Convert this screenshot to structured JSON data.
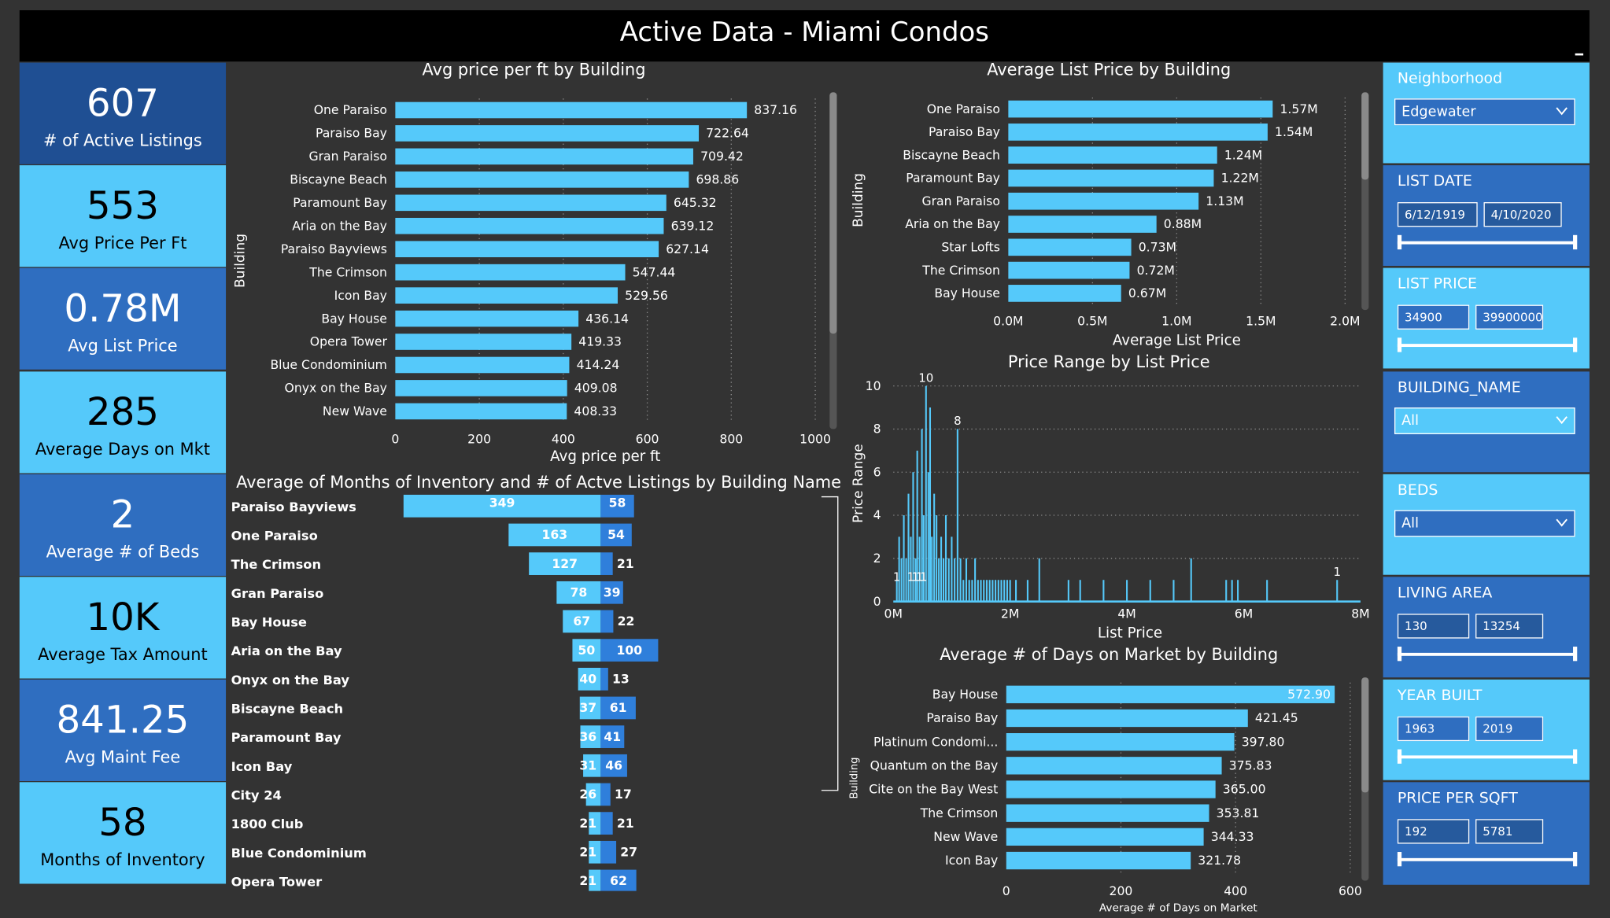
{
  "title": "Active Data - Miami Condos",
  "colors": {
    "bar": "#55c9fa",
    "bar_dark": "#2f7fdb",
    "card_light": "#55c9fa",
    "card_mid": "#2f6ec0",
    "card_dark": "#1f4f93",
    "bg": "#333333"
  },
  "kpis": [
    {
      "value": "607",
      "label": "# of Active Listings"
    },
    {
      "value": "553",
      "label": "Avg Price Per Ft"
    },
    {
      "value": "0.78M",
      "label": "Avg List Price"
    },
    {
      "value": "285",
      "label": "Average Days on Mkt"
    },
    {
      "value": "2",
      "label": "Average # of Beds"
    },
    {
      "value": "10K",
      "label": "Average Tax Amount"
    },
    {
      "value": "841.25",
      "label": "Avg Maint Fee"
    },
    {
      "value": "58",
      "label": "Months of Inventory"
    }
  ],
  "slicers": {
    "neighborhood": {
      "label": "Neighborhood",
      "value": "Edgewater"
    },
    "list_date": {
      "label": "LIST DATE",
      "from": "6/12/1919",
      "to": "4/10/2020"
    },
    "list_price": {
      "label": "LIST PRICE",
      "from": "34900",
      "to": "39900000"
    },
    "building_name": {
      "label": "BUILDING_NAME",
      "value": "All"
    },
    "beds": {
      "label": "BEDS",
      "value": "All"
    },
    "living_area": {
      "label": "LIVING AREA",
      "from": "130",
      "to": "13254"
    },
    "year_built": {
      "label": "YEAR BUILT",
      "from": "1963",
      "to": "2019"
    },
    "price_per_sqft": {
      "label": "PRICE PER SQFT",
      "from": "192",
      "to": "5781"
    }
  },
  "chart_data": [
    {
      "type": "bar",
      "title": "Avg price per ft by Building",
      "xlabel": "Avg price per ft",
      "ylabel": "Building",
      "orientation": "horizontal",
      "categories": [
        "One Paraiso",
        "Paraiso Bay",
        "Gran Paraiso",
        "Biscayne Beach",
        "Paramount Bay",
        "Aria on the Bay",
        "Paraiso Bayviews",
        "The Crimson",
        "Icon Bay",
        "Bay House",
        "Opera Tower",
        "Blue Condominium",
        "Onyx on the Bay",
        "New Wave"
      ],
      "values": [
        837.16,
        722.64,
        709.42,
        698.86,
        645.32,
        639.12,
        627.14,
        547.44,
        529.56,
        436.14,
        419.33,
        414.24,
        409.08,
        408.33
      ],
      "labels": [
        "837.16",
        "722.64",
        "709.42",
        "698.86",
        "645.32",
        "639.12",
        "627.14",
        "547.44",
        "529.56",
        "436.14",
        "419.33",
        "414.24",
        "409.08",
        "408.33"
      ],
      "xticks": [
        "0",
        "200",
        "400",
        "600",
        "800",
        "1000"
      ],
      "xlim": [
        0,
        1000
      ],
      "grid": true
    },
    {
      "type": "bar",
      "title": "Average List Price by Building",
      "xlabel": "Average List Price",
      "ylabel": "Building",
      "orientation": "horizontal",
      "categories": [
        "One Paraiso",
        "Paraiso Bay",
        "Biscayne Beach",
        "Paramount Bay",
        "Gran Paraiso",
        "Aria on the Bay",
        "Star Lofts",
        "The Crimson",
        "Bay House"
      ],
      "values": [
        1570000,
        1540000,
        1240000,
        1220000,
        1130000,
        880000,
        730000,
        720000,
        670000
      ],
      "labels": [
        "1.57M",
        "1.54M",
        "1.24M",
        "1.22M",
        "1.13M",
        "0.88M",
        "0.73M",
        "0.72M",
        "0.67M"
      ],
      "xticks": [
        "0.0M",
        "0.5M",
        "1.0M",
        "1.5M",
        "2.0M"
      ],
      "xlim": [
        0,
        2000000
      ],
      "grid": true
    },
    {
      "type": "bar",
      "title": "Average of Months of Inventory and # of Actve Listings by Building Name",
      "orientation": "horizontal-diverging",
      "categories": [
        "Paraiso Bayviews",
        "One Paraiso",
        "The Crimson",
        "Gran Paraiso",
        "Bay House",
        "Aria on the Bay",
        "Onyx on the Bay",
        "Biscayne Beach",
        "Paramount Bay",
        "Icon Bay",
        "City 24",
        "1800 Club",
        "Blue Condominium",
        "Opera Tower"
      ],
      "series": [
        {
          "values": [
            349,
            163,
            127,
            78,
            67,
            50,
            40,
            37,
            36,
            31,
            26,
            21,
            21,
            21
          ]
        },
        {
          "values": [
            58,
            54,
            21,
            39,
            22,
            100,
            13,
            61,
            41,
            46,
            17,
            21,
            27,
            62
          ]
        }
      ]
    },
    {
      "type": "line",
      "title": "Price Range by List Price",
      "xlabel": "List Price",
      "ylabel": "Price Range",
      "xticks": [
        "0M",
        "2M",
        "4M",
        "6M",
        "8M"
      ],
      "yticks": [
        "0",
        "2",
        "4",
        "6",
        "8",
        "10"
      ],
      "xlim": [
        0,
        8000000
      ],
      "ylim": [
        0,
        10
      ],
      "annotations": [
        "10",
        "8",
        "1",
        "1",
        "1",
        "1",
        "1",
        "1"
      ],
      "spikes": [
        [
          60000,
          1
        ],
        [
          100000,
          3
        ],
        [
          140000,
          2
        ],
        [
          180000,
          4
        ],
        [
          220000,
          2
        ],
        [
          260000,
          5
        ],
        [
          300000,
          3
        ],
        [
          340000,
          6
        ],
        [
          380000,
          2
        ],
        [
          410000,
          7
        ],
        [
          450000,
          3
        ],
        [
          490000,
          8
        ],
        [
          520000,
          4
        ],
        [
          560000,
          10
        ],
        [
          600000,
          6
        ],
        [
          630000,
          9
        ],
        [
          660000,
          3
        ],
        [
          700000,
          5
        ],
        [
          740000,
          4
        ],
        [
          780000,
          2
        ],
        [
          820000,
          3
        ],
        [
          860000,
          2
        ],
        [
          900000,
          4
        ],
        [
          950000,
          2
        ],
        [
          1000000,
          3
        ],
        [
          1050000,
          2
        ],
        [
          1100000,
          8
        ],
        [
          1150000,
          2
        ],
        [
          1200000,
          1
        ],
        [
          1250000,
          2
        ],
        [
          1300000,
          1
        ],
        [
          1350000,
          1
        ],
        [
          1400000,
          2
        ],
        [
          1450000,
          1
        ],
        [
          1500000,
          1
        ],
        [
          1550000,
          1
        ],
        [
          1600000,
          1
        ],
        [
          1650000,
          1
        ],
        [
          1700000,
          1
        ],
        [
          1750000,
          1
        ],
        [
          1800000,
          1
        ],
        [
          1850000,
          1
        ],
        [
          1900000,
          1
        ],
        [
          1950000,
          1
        ],
        [
          2000000,
          1
        ],
        [
          2100000,
          1
        ],
        [
          2300000,
          1
        ],
        [
          2500000,
          2
        ],
        [
          3000000,
          1
        ],
        [
          3200000,
          1
        ],
        [
          3600000,
          1
        ],
        [
          4000000,
          1
        ],
        [
          4400000,
          1
        ],
        [
          4800000,
          1
        ],
        [
          5100000,
          2
        ],
        [
          5700000,
          1
        ],
        [
          5800000,
          1
        ],
        [
          5900000,
          1
        ],
        [
          6400000,
          1
        ],
        [
          7600000,
          1
        ]
      ],
      "grid": true
    },
    {
      "type": "bar",
      "title": "Average # of Days on Market by Building",
      "xlabel": "Average # of Days on Market",
      "ylabel": "Building",
      "orientation": "horizontal",
      "categories": [
        "Bay House",
        "Paraiso Bay",
        "Platinum Condomi...",
        "Quantum on the Bay",
        "Cite on the Bay West",
        "The Crimson",
        "New Wave",
        "Icon Bay"
      ],
      "values": [
        572.9,
        421.45,
        397.8,
        375.83,
        365.0,
        353.81,
        344.33,
        321.78
      ],
      "labels": [
        "572.90",
        "421.45",
        "397.80",
        "375.83",
        "365.00",
        "353.81",
        "344.33",
        "321.78"
      ],
      "xticks": [
        "0",
        "200",
        "400",
        "600"
      ],
      "xlim": [
        0,
        600
      ],
      "grid": true
    }
  ]
}
